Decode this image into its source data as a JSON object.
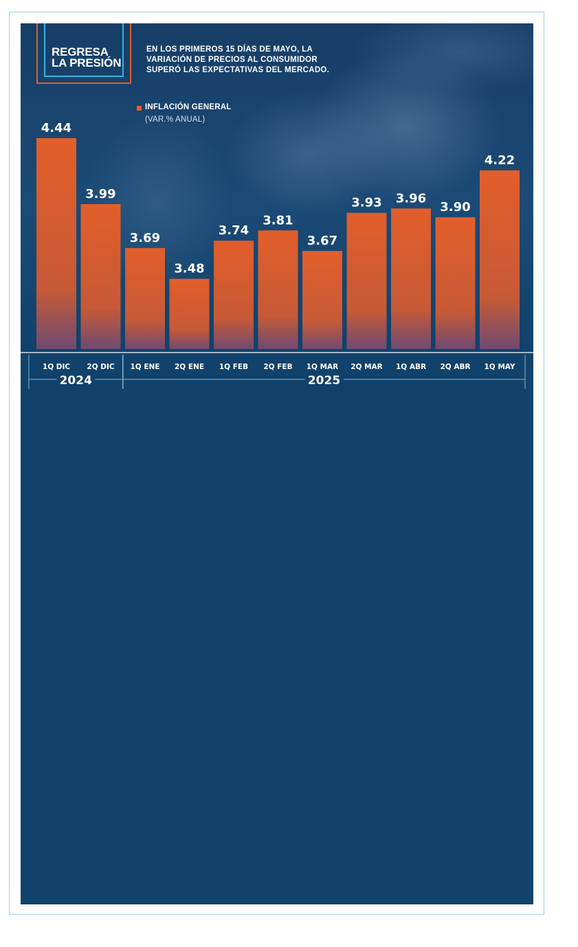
{
  "header": {
    "title": "REGRESA\nLA PRESIÓN",
    "subtitle": "EN LOS PRIMEROS 15 DÍAS DE MAYO, LA VARIACIÓN DE PRECIOS AL CONSUMIDOR SUPERÓ LAS EXPECTATIVAS DEL MERCADO."
  },
  "legend": {
    "series_name": "INFLACIÓN GENERAL",
    "unit": "(VAR.% ANUAL)"
  },
  "colors": {
    "panel": "#10426b",
    "bar_top": "#e25e2b",
    "bar_bottom": "#7a4a6a",
    "accent_blue": "#39b1e0",
    "text": "#ffffff"
  },
  "chart_data": {
    "type": "bar",
    "title": "REGRESA LA PRESIÓN",
    "ylabel": "(VAR.% ANUAL)",
    "ylim": [
      3.0,
      4.6
    ],
    "categories": [
      "1Q DIC",
      "2Q DIC",
      "1Q ENE",
      "2Q ENE",
      "1Q FEB",
      "2Q FEB",
      "1Q MAR",
      "2Q MAR",
      "1Q ABR",
      "2Q ABR",
      "1Q MAY"
    ],
    "series": [
      {
        "name": "INFLACIÓN GENERAL",
        "values": [
          4.44,
          3.99,
          3.69,
          3.48,
          3.74,
          3.81,
          3.67,
          3.93,
          3.96,
          3.9,
          4.22
        ],
        "labels": [
          "4.44",
          "3.99",
          "3.69",
          "3.48",
          "3.74",
          "3.81",
          "3.67",
          "3.93",
          "3.96",
          "3.90",
          "4.22"
        ]
      }
    ],
    "groups": [
      {
        "label": "2024",
        "count": 2
      },
      {
        "label": "2025",
        "count": 9
      }
    ]
  }
}
